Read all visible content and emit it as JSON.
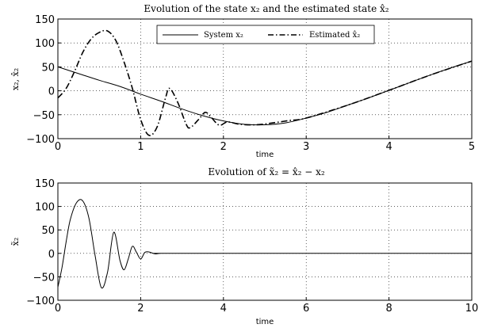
{
  "chart_data": [
    {
      "type": "line",
      "title": "Evolution of the state x₂ and the estimated state x̂₂",
      "xlabel": "time",
      "ylabel": "x₂, x̂₂",
      "xlim": [
        0,
        5
      ],
      "ylim": [
        -100,
        150
      ],
      "xticks": [
        "0",
        "1",
        "2",
        "3",
        "4",
        "5"
      ],
      "yticks": [
        "150",
        "100",
        "50",
        "0",
        "−50",
        "−100"
      ],
      "grid": true,
      "legend": "top-center",
      "series": [
        {
          "name": "System x₂",
          "style": "solid",
          "x": [
            0,
            0.25,
            0.5,
            0.75,
            1.0,
            1.25,
            1.5,
            1.75,
            2.0,
            2.25,
            2.5,
            2.75,
            3.0,
            3.25,
            3.5,
            3.75,
            4.0,
            4.25,
            4.5,
            4.75,
            5.0
          ],
          "y": [
            50,
            36,
            22,
            9,
            -7,
            -22,
            -38,
            -52,
            -63,
            -70,
            -71,
            -67,
            -57,
            -45,
            -30,
            -15,
            1,
            17,
            33,
            48,
            62
          ]
        },
        {
          "name": "Estimated x̂₂",
          "style": "dash-dot",
          "x": [
            0,
            0.1,
            0.2,
            0.3,
            0.4,
            0.5,
            0.6,
            0.7,
            0.8,
            0.9,
            1.0,
            1.1,
            1.2,
            1.3,
            1.35,
            1.45,
            1.55,
            1.6,
            1.7,
            1.78,
            1.85,
            1.95,
            2.05,
            2.2,
            2.4,
            2.6,
            2.8,
            3.0,
            3.5,
            4.0,
            4.5,
            5.0
          ],
          "y": [
            -15,
            5,
            40,
            80,
            108,
            122,
            125,
            105,
            60,
            5,
            -60,
            -93,
            -75,
            -15,
            5,
            -25,
            -70,
            -77,
            -60,
            -45,
            -55,
            -72,
            -65,
            -70,
            -71,
            -67,
            -62,
            -57,
            -30,
            1,
            33,
            62
          ]
        }
      ]
    },
    {
      "type": "line",
      "title": "Evolution of x̃₂ = x̂₂ − x₂",
      "xlabel": "time",
      "ylabel": "x̃₂",
      "xlim": [
        0,
        10
      ],
      "ylim": [
        -100,
        150
      ],
      "xticks": [
        "0",
        "2",
        "4",
        "6",
        "8",
        "10"
      ],
      "yticks": [
        "150",
        "100",
        "50",
        "0",
        "−50",
        "−100"
      ],
      "grid": true,
      "series": [
        {
          "style": "solid",
          "x": [
            0,
            0.1,
            0.2,
            0.3,
            0.45,
            0.6,
            0.75,
            0.9,
            1.05,
            1.2,
            1.35,
            1.5,
            1.6,
            1.7,
            1.8,
            1.9,
            2.0,
            2.1,
            2.2,
            2.35,
            2.5,
            3.0,
            10.0
          ],
          "y": [
            -72,
            -30,
            25,
            72,
            108,
            112,
            75,
            -5,
            -73,
            -40,
            45,
            -15,
            -35,
            -12,
            15,
            2,
            -12,
            2,
            3,
            -1,
            0,
            0,
            0
          ]
        }
      ]
    }
  ]
}
